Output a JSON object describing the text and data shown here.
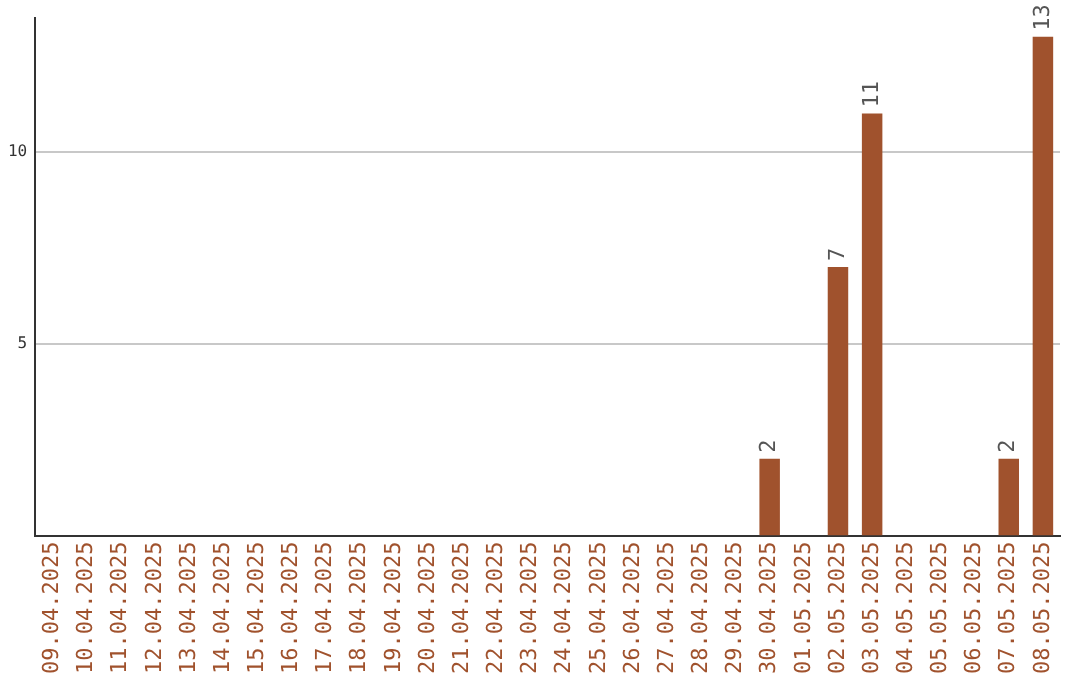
{
  "chart_data": {
    "type": "bar",
    "categories": [
      "09.04.2025",
      "10.04.2025",
      "11.04.2025",
      "12.04.2025",
      "13.04.2025",
      "14.04.2025",
      "15.04.2025",
      "16.04.2025",
      "17.04.2025",
      "18.04.2025",
      "19.04.2025",
      "20.04.2025",
      "21.04.2025",
      "22.04.2025",
      "23.04.2025",
      "24.04.2025",
      "25.04.2025",
      "26.04.2025",
      "27.04.2025",
      "28.04.2025",
      "29.04.2025",
      "30.04.2025",
      "01.05.2025",
      "02.05.2025",
      "03.05.2025",
      "04.05.2025",
      "05.05.2025",
      "06.05.2025",
      "07.05.2025",
      "08.05.2025"
    ],
    "values": [
      null,
      null,
      null,
      null,
      null,
      null,
      null,
      null,
      null,
      null,
      null,
      null,
      null,
      null,
      null,
      null,
      null,
      null,
      null,
      null,
      null,
      2,
      null,
      7,
      11,
      null,
      null,
      null,
      2,
      13
    ],
    "color": "#a0522d",
    "ylim": [
      0,
      13.5
    ],
    "yticks": [
      5,
      10
    ],
    "grid": "y",
    "data_labels": true,
    "legend": false
  }
}
